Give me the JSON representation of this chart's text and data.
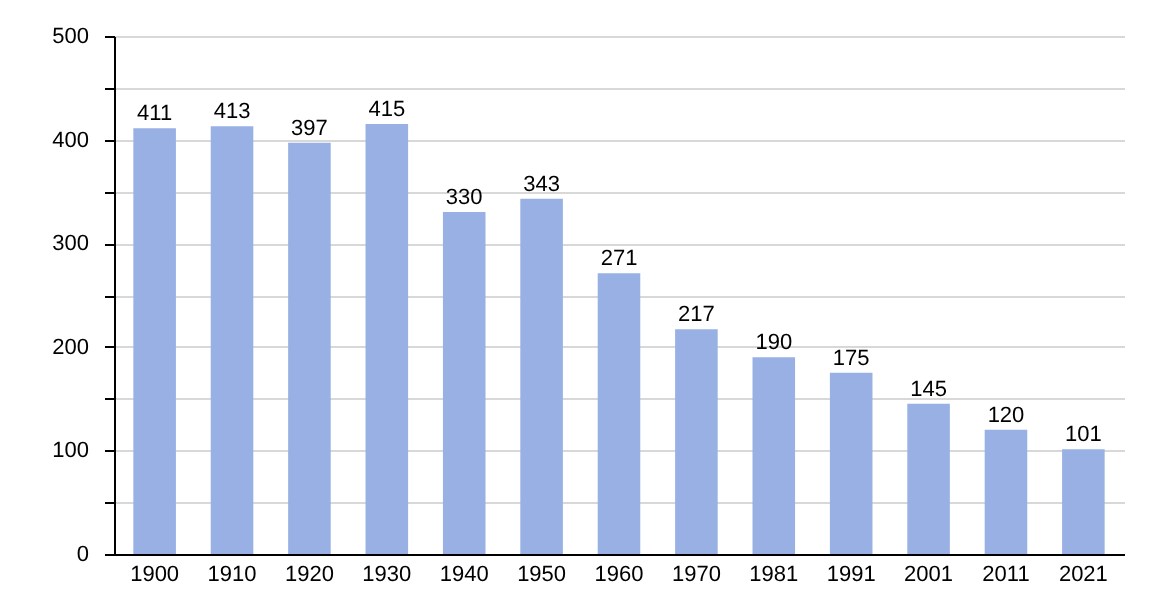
{
  "chart_data": {
    "type": "bar",
    "categories": [
      "1900",
      "1910",
      "1920",
      "1930",
      "1940",
      "1950",
      "1960",
      "1970",
      "1981",
      "1991",
      "2001",
      "2011",
      "2021"
    ],
    "values": [
      411,
      413,
      397,
      415,
      330,
      343,
      271,
      217,
      190,
      175,
      145,
      120,
      101
    ],
    "color": "#98b0e4",
    "ylim": [
      0,
      500
    ],
    "yticks": [
      0,
      {
        "value": 50,
        "label": null
      },
      100,
      {
        "value": 150,
        "label": null
      },
      200,
      {
        "value": 250,
        "label": null
      },
      300,
      {
        "value": 350,
        "label": null
      },
      400,
      {
        "value": 450,
        "label": null
      },
      500
    ],
    "grid": "y",
    "data_labels": true
  }
}
